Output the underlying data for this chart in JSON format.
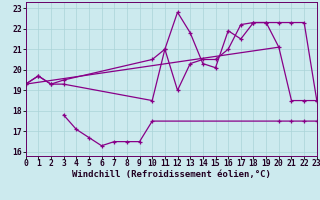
{
  "background_color": "#cceaee",
  "line_color": "#880088",
  "grid_color": "#aad4d8",
  "xlabel": "Windchill (Refroidissement éolien,°C)",
  "xlabel_fontsize": 6.5,
  "tick_fontsize": 5.8,
  "xlim": [
    0,
    23
  ],
  "ylim": [
    15.8,
    23.3
  ],
  "yticks": [
    16,
    17,
    18,
    19,
    20,
    21,
    22,
    23
  ],
  "xticks": [
    0,
    1,
    2,
    3,
    4,
    5,
    6,
    7,
    8,
    9,
    10,
    11,
    12,
    13,
    14,
    15,
    16,
    17,
    18,
    19,
    20,
    21,
    22,
    23
  ],
  "line1_x": [
    0,
    1,
    2,
    3,
    10,
    11,
    12,
    13,
    14,
    15,
    16,
    17,
    18,
    19,
    20,
    21,
    22,
    23
  ],
  "line1_y": [
    19.3,
    19.7,
    19.3,
    19.3,
    18.5,
    21.0,
    22.8,
    21.8,
    20.3,
    20.1,
    21.9,
    21.5,
    22.3,
    22.3,
    21.1,
    18.5,
    18.5,
    18.5
  ],
  "line2_x": [
    0,
    1,
    2,
    3,
    10,
    11,
    12,
    13,
    14,
    15,
    16,
    17,
    18,
    19,
    20,
    21,
    22,
    23
  ],
  "line2_y": [
    19.3,
    19.7,
    19.3,
    19.5,
    20.5,
    21.0,
    19.0,
    20.3,
    20.5,
    20.5,
    21.0,
    22.2,
    22.3,
    22.3,
    22.3,
    22.3,
    22.3,
    18.5
  ],
  "line3_x": [
    3,
    4,
    5,
    6,
    7,
    8,
    9,
    10,
    20,
    21,
    22,
    23
  ],
  "line3_y": [
    17.8,
    17.1,
    16.7,
    16.3,
    16.5,
    16.5,
    16.5,
    17.5,
    17.5,
    17.5,
    17.5,
    17.5
  ],
  "trend_x": [
    0,
    20
  ],
  "trend_y": [
    19.3,
    21.1
  ]
}
